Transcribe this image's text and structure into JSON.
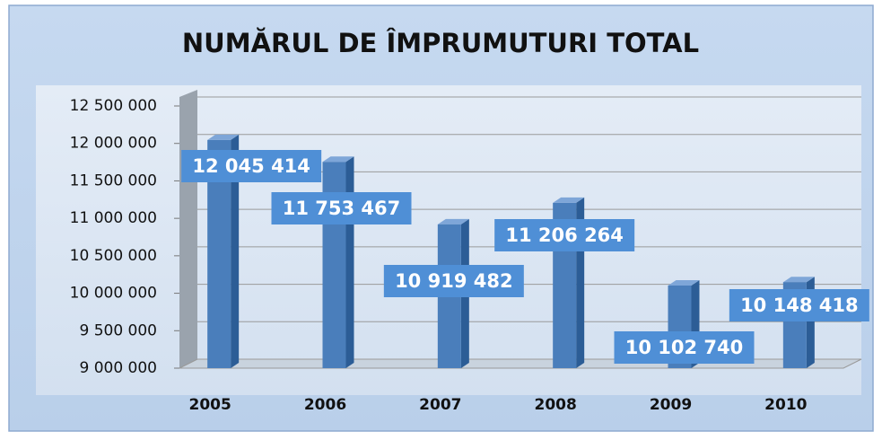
{
  "chart_data": {
    "type": "bar3d",
    "title": "NUMĂRUL DE ÎMPRUMUTURI TOTAL",
    "categories": [
      "2005",
      "2006",
      "2007",
      "2008",
      "2009",
      "2010"
    ],
    "values": [
      12045414,
      11753467,
      10919482,
      11206264,
      10102740,
      10148418
    ],
    "value_labels": [
      "12 045 414",
      "11 753 467",
      "10 919 482",
      "11 206 264",
      "10 102 740",
      "10 148 418"
    ],
    "color": "#4a7ebb",
    "ylim": [
      9000000,
      12500000
    ],
    "yticks": [
      {
        "value": 9000000,
        "label": "9 000 000"
      },
      {
        "value": 9500000,
        "label": "9 500 000"
      },
      {
        "value": 10000000,
        "label": "10 000 000"
      },
      {
        "value": 10500000,
        "label": "10 500 000"
      },
      {
        "value": 11000000,
        "label": "11 000 000"
      },
      {
        "value": 11500000,
        "label": "11 500 000"
      },
      {
        "value": 12000000,
        "label": "12 000 000"
      },
      {
        "value": 12500000,
        "label": "12 500 000"
      }
    ],
    "grid": true
  }
}
